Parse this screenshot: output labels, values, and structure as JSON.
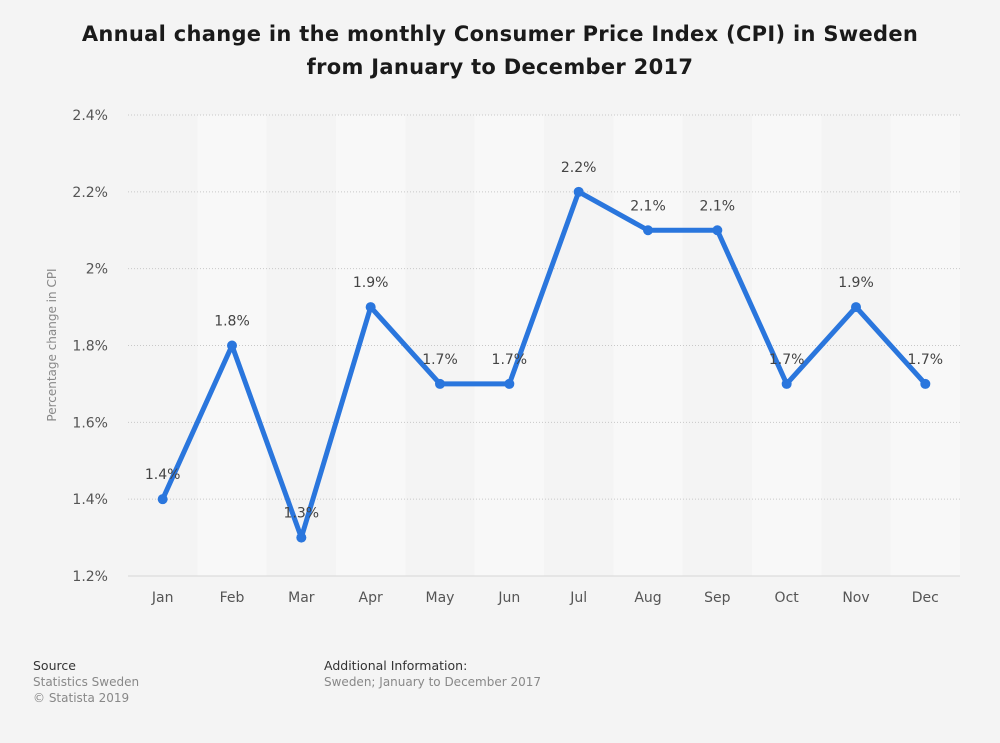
{
  "title": {
    "line1": "Annual change in the monthly Consumer Price Index (CPI) in Sweden",
    "line2": "from January to December 2017"
  },
  "chart_data": {
    "type": "line",
    "title": "Annual change in the monthly Consumer Price Index (CPI) in Sweden from January to December 2017",
    "xlabel": "",
    "ylabel": "Percentage change in CPI",
    "categories": [
      "Jan",
      "Feb",
      "Mar",
      "Apr",
      "May",
      "Jun",
      "Jul",
      "Aug",
      "Sep",
      "Oct",
      "Nov",
      "Dec"
    ],
    "values": [
      1.4,
      1.8,
      1.3,
      1.9,
      1.7,
      1.7,
      2.2,
      2.1,
      2.1,
      1.7,
      1.9,
      1.7
    ],
    "data_labels": [
      "1.4%",
      "1.8%",
      "1.3%",
      "1.9%",
      "1.7%",
      "1.7%",
      "2.2%",
      "2.1%",
      "2.1%",
      "1.7%",
      "1.9%",
      "1.7%"
    ],
    "ylim": [
      1.2,
      2.4
    ],
    "yticks": [
      1.2,
      1.4,
      1.6,
      1.8,
      2,
      2.2,
      2.4
    ],
    "ytick_labels": [
      "1.2%",
      "1.4%",
      "1.6%",
      "1.8%",
      "2%",
      "2.2%",
      "2.4%"
    ],
    "grid": true,
    "line_color": "#2a76dd",
    "band_color": "#f8f8f8",
    "background_color": "#f4f4f4"
  },
  "footer": {
    "source_heading": "Source",
    "source_name": "Statistics Sweden",
    "copyright": "© Statista 2019",
    "info_heading": "Additional Information:",
    "info_text": "Sweden; January to December 2017"
  }
}
